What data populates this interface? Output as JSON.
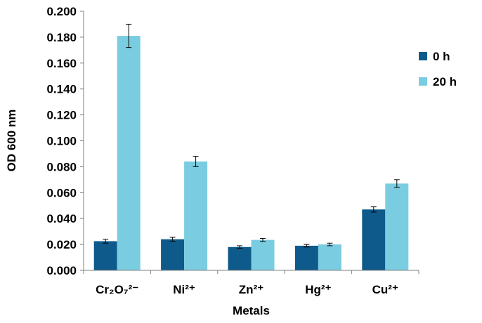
{
  "chart_data": {
    "type": "bar",
    "title": "",
    "xlabel": "Metals",
    "ylabel": "OD 600 nm",
    "ylim": [
      0,
      0.2
    ],
    "y_ticks": [
      "0.000",
      "0.020",
      "0.040",
      "0.060",
      "0.080",
      "0.100",
      "0.120",
      "0.140",
      "0.160",
      "0.180",
      "0.200"
    ],
    "categories": [
      "Cr₂O₇²⁻",
      "Ni²⁺",
      "Zn²⁺",
      "Hg²⁺",
      "Cu²⁺"
    ],
    "series": [
      {
        "name": "0 h",
        "color": "#0E5A8A",
        "values": [
          0.0225,
          0.024,
          0.018,
          0.019,
          0.047
        ],
        "errors": [
          0.0015,
          0.0015,
          0.001,
          0.001,
          0.002
        ]
      },
      {
        "name": "20 h",
        "color": "#7ACDE0",
        "values": [
          0.181,
          0.084,
          0.0235,
          0.02,
          0.067
        ],
        "errors": [
          0.009,
          0.004,
          0.0012,
          0.001,
          0.003
        ]
      }
    ],
    "legend_position": "top-right",
    "grid": false,
    "error_bars": true
  }
}
